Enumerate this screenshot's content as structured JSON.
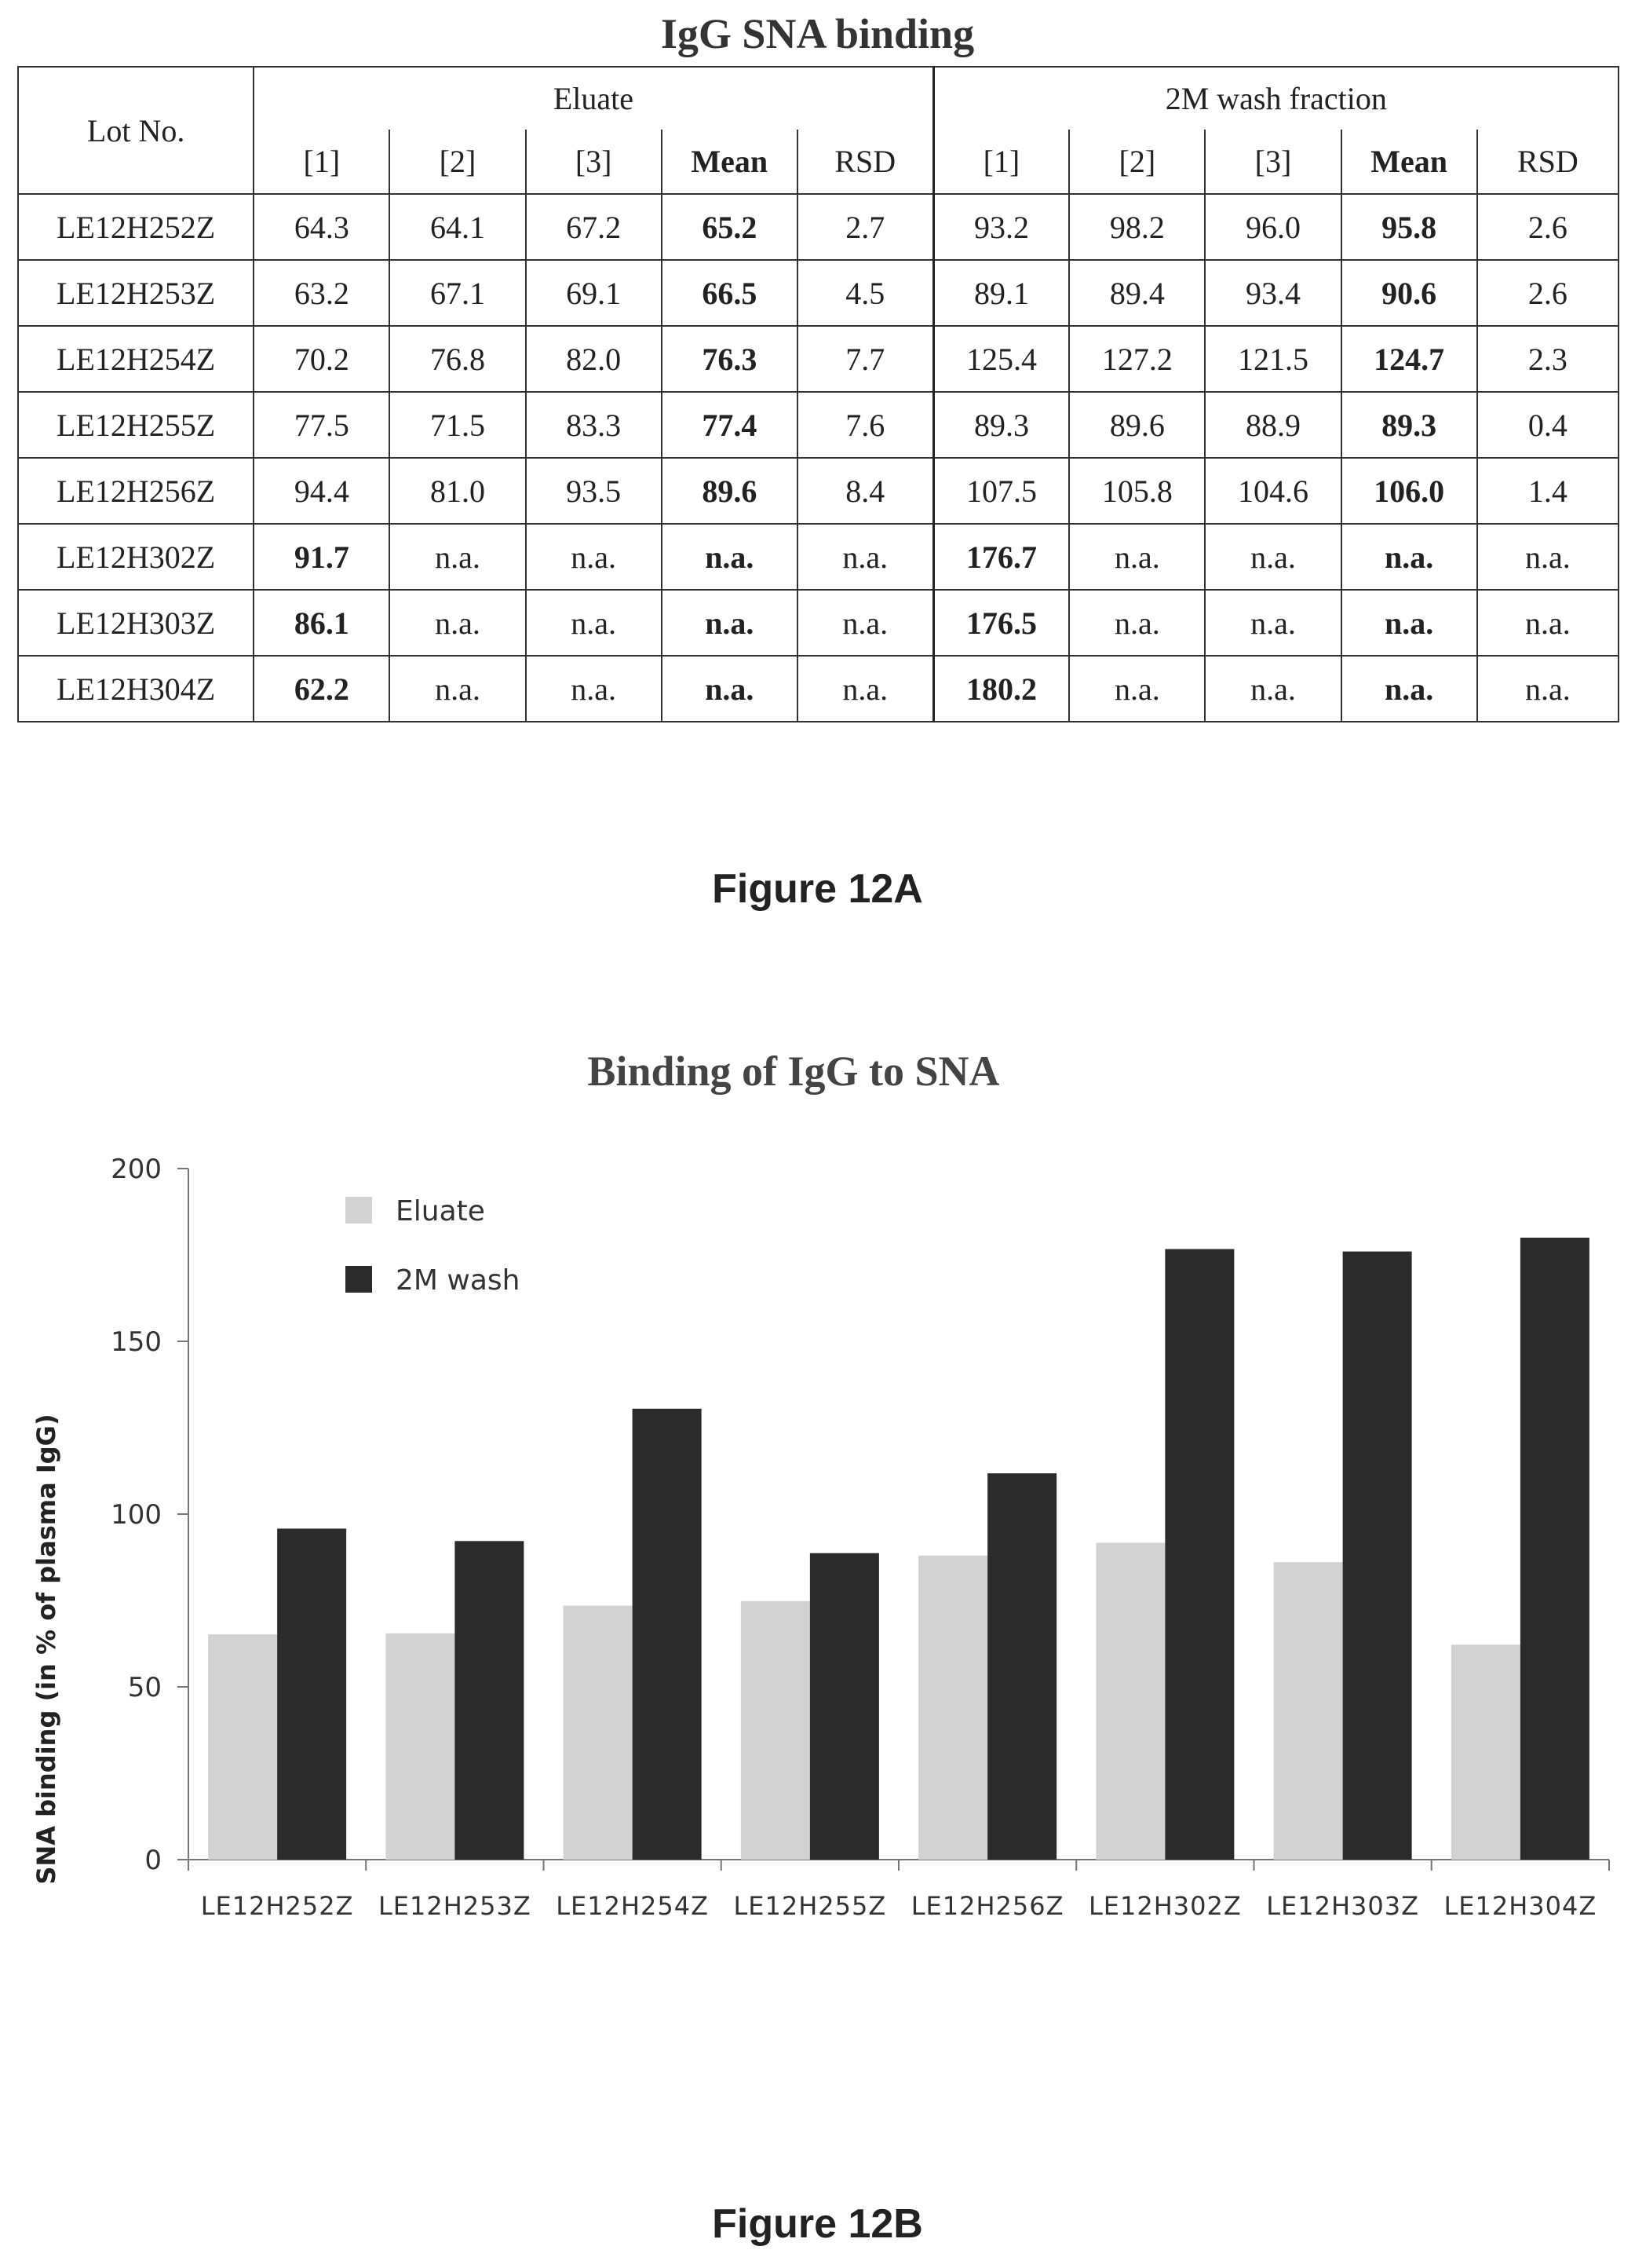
{
  "table": {
    "title": "IgG SNA binding",
    "lot_header": "Lot No.",
    "eluate_header": "Eluate",
    "wash_header": "2M wash fraction",
    "sub_headers": [
      "[1]",
      "[2]",
      "[3]",
      "Mean",
      "RSD",
      "[1]",
      "[2]",
      "[3]",
      "Mean",
      "RSD"
    ],
    "rows": [
      {
        "lot": "LE12H252Z",
        "cells": [
          "64.3",
          "64.1",
          "67.2",
          "65.2",
          "2.7",
          "93.2",
          "98.2",
          "96.0",
          "95.8",
          "2.6"
        ]
      },
      {
        "lot": "LE12H253Z",
        "cells": [
          "63.2",
          "67.1",
          "69.1",
          "66.5",
          "4.5",
          "89.1",
          "89.4",
          "93.4",
          "90.6",
          "2.6"
        ]
      },
      {
        "lot": "LE12H254Z",
        "cells": [
          "70.2",
          "76.8",
          "82.0",
          "76.3",
          "7.7",
          "125.4",
          "127.2",
          "121.5",
          "124.7",
          "2.3"
        ]
      },
      {
        "lot": "LE12H255Z",
        "cells": [
          "77.5",
          "71.5",
          "83.3",
          "77.4",
          "7.6",
          "89.3",
          "89.6",
          "88.9",
          "89.3",
          "0.4"
        ]
      },
      {
        "lot": "LE12H256Z",
        "cells": [
          "94.4",
          "81.0",
          "93.5",
          "89.6",
          "8.4",
          "107.5",
          "105.8",
          "104.6",
          "106.0",
          "1.4"
        ]
      },
      {
        "lot": "LE12H302Z",
        "cells": [
          "91.7",
          "n.a.",
          "n.a.",
          "n.a.",
          "n.a.",
          "176.7",
          "n.a.",
          "n.a.",
          "n.a.",
          "n.a."
        ]
      },
      {
        "lot": "LE12H303Z",
        "cells": [
          "86.1",
          "n.a.",
          "n.a.",
          "n.a.",
          "n.a.",
          "176.5",
          "n.a.",
          "n.a.",
          "n.a.",
          "n.a."
        ]
      },
      {
        "lot": "LE12H304Z",
        "cells": [
          "62.2",
          "n.a.",
          "n.a.",
          "n.a.",
          "n.a.",
          "180.2",
          "n.a.",
          "n.a.",
          "n.a.",
          "n.a."
        ]
      }
    ]
  },
  "figure_a_caption": "Figure 12A",
  "figure_b_caption": "Figure 12B",
  "chart_data": {
    "type": "bar",
    "title": "Binding of IgG to SNA",
    "xlabel": "",
    "ylabel": "SNA binding (in % of plasma IgG)",
    "ylim": [
      0,
      200
    ],
    "yticks": [
      0,
      50,
      100,
      150,
      200
    ],
    "categories": [
      "LE12H252Z",
      "LE12H253Z",
      "LE12H254Z",
      "LE12H255Z",
      "LE12H256Z",
      "LE12H302Z",
      "LE12H303Z",
      "LE12H304Z"
    ],
    "series": [
      {
        "name": "Eluate",
        "color": "#d2d2d2",
        "values": [
          65.2,
          65.5,
          73.5,
          74.8,
          88.0,
          91.7,
          86.1,
          62.2
        ]
      },
      {
        "name": "2M wash",
        "color": "#2b2b2b",
        "values": [
          95.8,
          92.2,
          130.5,
          88.7,
          111.8,
          176.7,
          176.0,
          180.0
        ]
      }
    ],
    "legend_position": "top-left",
    "grid": false
  }
}
